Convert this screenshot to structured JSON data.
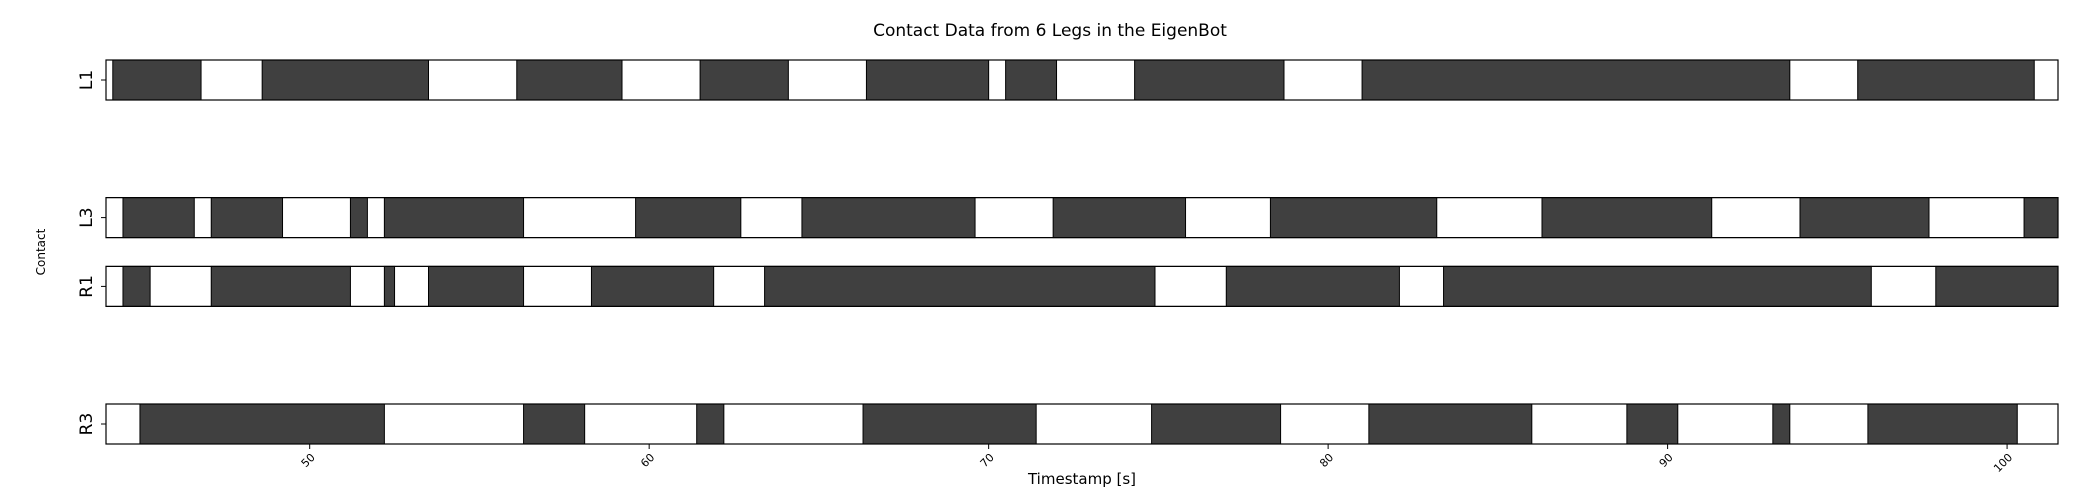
{
  "chart_data": {
    "type": "broken-barh",
    "title": "Contact Data from 6 Legs in the EigenBot",
    "xlabel": "Timestamp [s]",
    "ylabel": "Contact",
    "xlim": [
      44,
      101.5
    ],
    "xticks": [
      50,
      60,
      70,
      80,
      90,
      100
    ],
    "contact_color": "#404040",
    "no_contact_color": "#ffffff",
    "rows": [
      {
        "label": "L1",
        "contact": [
          [
            44.2,
            46.8
          ],
          [
            48.6,
            53.5
          ],
          [
            56.1,
            59.2
          ],
          [
            61.5,
            64.1
          ],
          [
            66.4,
            70.0
          ],
          [
            70.5,
            72.0
          ],
          [
            74.3,
            78.7
          ],
          [
            81.0,
            93.6
          ],
          [
            95.6,
            100.8
          ]
        ]
      },
      {
        "label": "",
        "contact": []
      },
      {
        "label": "L3",
        "contact": [
          [
            44.5,
            46.6
          ],
          [
            47.1,
            49.2
          ],
          [
            51.2,
            51.7
          ],
          [
            52.2,
            56.3
          ],
          [
            59.6,
            62.7
          ],
          [
            64.5,
            69.6
          ],
          [
            71.9,
            75.8
          ],
          [
            78.3,
            83.2
          ],
          [
            86.3,
            91.3
          ],
          [
            93.9,
            97.7
          ],
          [
            100.5,
            101.5
          ]
        ]
      },
      {
        "label": "R1",
        "contact": [
          [
            44.5,
            45.3
          ],
          [
            47.1,
            51.2
          ],
          [
            52.2,
            52.5
          ],
          [
            53.5,
            56.3
          ],
          [
            58.3,
            61.9
          ],
          [
            63.4,
            74.9
          ],
          [
            77.0,
            82.1
          ],
          [
            83.4,
            96.0
          ],
          [
            97.9,
            101.5
          ]
        ]
      },
      {
        "label": "",
        "contact": []
      },
      {
        "label": "R3",
        "contact": [
          [
            45.0,
            52.2
          ],
          [
            56.3,
            58.1
          ],
          [
            61.4,
            62.2
          ],
          [
            66.3,
            71.4
          ],
          [
            74.8,
            78.6
          ],
          [
            81.2,
            86.0
          ],
          [
            88.8,
            90.3
          ],
          [
            93.1,
            93.6
          ],
          [
            95.9,
            100.3
          ]
        ]
      }
    ]
  }
}
